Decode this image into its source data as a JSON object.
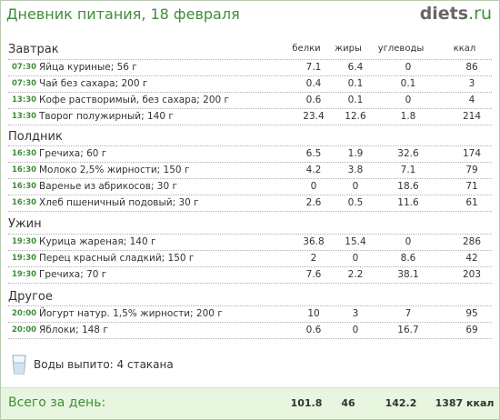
{
  "header": {
    "title": "Дневник питания, 18 февраля",
    "brand_name": "diets",
    "brand_tld": ".ru"
  },
  "columns": {
    "protein": "белки",
    "fat": "жиры",
    "carbs": "углеводы",
    "kcal": "ккал"
  },
  "sections": [
    {
      "title": "Завтрак",
      "items": [
        {
          "time": "07:30",
          "name": "Яйца куриные; 56 г",
          "protein": "7.1",
          "fat": "6.4",
          "carbs": "0",
          "kcal": "86"
        },
        {
          "time": "07:30",
          "name": "Чай без сахара; 200 г",
          "protein": "0.4",
          "fat": "0.1",
          "carbs": "0.1",
          "kcal": "3"
        },
        {
          "time": "13:30",
          "name": "Кофе растворимый, без сахара; 200 г",
          "protein": "0.6",
          "fat": "0.1",
          "carbs": "0",
          "kcal": "4"
        },
        {
          "time": "13:30",
          "name": "Творог полужирный; 140 г",
          "protein": "23.4",
          "fat": "12.6",
          "carbs": "1.8",
          "kcal": "214"
        }
      ]
    },
    {
      "title": "Полдник",
      "items": [
        {
          "time": "16:30",
          "name": "Гречиха; 60 г",
          "protein": "6.5",
          "fat": "1.9",
          "carbs": "32.6",
          "kcal": "174"
        },
        {
          "time": "16:30",
          "name": "Молоко 2,5% жирности; 150 г",
          "protein": "4.2",
          "fat": "3.8",
          "carbs": "7.1",
          "kcal": "79"
        },
        {
          "time": "16:30",
          "name": "Варенье из абрикосов; 30 г",
          "protein": "0",
          "fat": "0",
          "carbs": "18.6",
          "kcal": "71"
        },
        {
          "time": "16:30",
          "name": "Хлеб пшеничный подовый; 30 г",
          "protein": "2.6",
          "fat": "0.5",
          "carbs": "11.6",
          "kcal": "61"
        }
      ]
    },
    {
      "title": "Ужин",
      "items": [
        {
          "time": "19:30",
          "name": "Курица жареная; 140 г",
          "protein": "36.8",
          "fat": "15.4",
          "carbs": "0",
          "kcal": "286"
        },
        {
          "time": "19:30",
          "name": "Перец красный сладкий; 150 г",
          "protein": "2",
          "fat": "0",
          "carbs": "8.6",
          "kcal": "42"
        },
        {
          "time": "19:30",
          "name": "Гречиха; 70 г",
          "protein": "7.6",
          "fat": "2.2",
          "carbs": "38.1",
          "kcal": "203"
        }
      ]
    },
    {
      "title": "Другое",
      "items": [
        {
          "time": "20:00",
          "name": "Йогурт натур. 1,5% жирности; 200 г",
          "protein": "10",
          "fat": "3",
          "carbs": "7",
          "kcal": "95"
        },
        {
          "time": "20:00",
          "name": "Яблоки; 148 г",
          "protein": "0.6",
          "fat": "0",
          "carbs": "16.7",
          "kcal": "69"
        }
      ]
    }
  ],
  "water": {
    "icon": "water-glass-icon",
    "label": "Воды выпито: 4 стакана"
  },
  "totals": {
    "label": "Всего за день:",
    "protein": "101.8",
    "fat": "46",
    "carbs": "142.2",
    "kcal": "1387 ккал"
  },
  "colors": {
    "accent": "#3f8d3a",
    "total_bg": "#e9f6df",
    "border": "#b7c9b0"
  }
}
